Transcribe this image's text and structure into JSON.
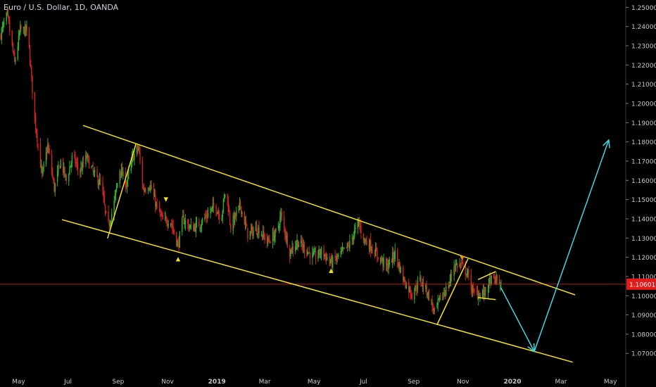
{
  "header": {
    "title": "Euro / U.S. Dollar, 1D, OANDA"
  },
  "colors": {
    "background": "#000000",
    "up_candle": "#2fb12f",
    "down_candle": "#d42323",
    "channel": "#f2e21e",
    "projection": "#3fd7e2",
    "price_line": "#b71c1c",
    "price_badge": "#e31b1b",
    "axis_text": "#c8c8c8"
  },
  "chart_data": {
    "type": "candlestick",
    "symbol": "Euro / U.S. Dollar",
    "interval": "1D",
    "source": "OANDA",
    "x_range": [
      "2018-04-08",
      "2020-05-20"
    ],
    "y_range": [
      1.0635,
      1.2538
    ],
    "x_ticks": [
      {
        "date": "2018-05-01",
        "label": "May"
      },
      {
        "date": "2018-07-01",
        "label": "Jul"
      },
      {
        "date": "2018-09-01",
        "label": "Sep"
      },
      {
        "date": "2018-11-01",
        "label": "Nov"
      },
      {
        "date": "2019-01-01",
        "label": "2019"
      },
      {
        "date": "2019-03-01",
        "label": "Mar"
      },
      {
        "date": "2019-05-01",
        "label": "May"
      },
      {
        "date": "2019-07-01",
        "label": "Jul"
      },
      {
        "date": "2019-09-01",
        "label": "Sep"
      },
      {
        "date": "2019-11-01",
        "label": "Nov"
      },
      {
        "date": "2020-01-01",
        "label": "2020"
      },
      {
        "date": "2020-03-01",
        "label": "Mar"
      },
      {
        "date": "2020-05-01",
        "label": "May"
      }
    ],
    "y_ticks": [
      {
        "value": 1.25,
        "label": "1.25000"
      },
      {
        "value": 1.24,
        "label": "1.24000"
      },
      {
        "value": 1.23,
        "label": "1.23000"
      },
      {
        "value": 1.22,
        "label": "1.22000"
      },
      {
        "value": 1.21,
        "label": "1.21000"
      },
      {
        "value": 1.2,
        "label": "1.20000"
      },
      {
        "value": 1.19,
        "label": "1.19000"
      },
      {
        "value": 1.18,
        "label": "1.18000"
      },
      {
        "value": 1.17,
        "label": "1.17000"
      },
      {
        "value": 1.16,
        "label": "1.16000"
      },
      {
        "value": 1.15,
        "label": "1.15000"
      },
      {
        "value": 1.14,
        "label": "1.14000"
      },
      {
        "value": 1.13,
        "label": "1.13000"
      },
      {
        "value": 1.12,
        "label": "1.12000"
      },
      {
        "value": 1.11,
        "label": "1.11000"
      },
      {
        "value": 1.1,
        "label": "1.10000"
      },
      {
        "value": 1.09,
        "label": "1.09000"
      },
      {
        "value": 1.08,
        "label": "1.08000"
      },
      {
        "value": 1.07,
        "label": "1.07000"
      }
    ],
    "current_price": {
      "value": 1.10601,
      "label": "1.10601"
    },
    "price_path": [
      [
        "2018-04-08",
        1.235
      ],
      [
        "2018-04-17",
        1.246
      ],
      [
        "2018-04-26",
        1.221
      ],
      [
        "2018-05-03",
        1.238
      ],
      [
        "2018-05-12",
        1.238
      ],
      [
        "2018-05-21",
        1.192
      ],
      [
        "2018-05-30",
        1.162
      ],
      [
        "2018-06-06",
        1.178
      ],
      [
        "2018-06-14",
        1.156
      ],
      [
        "2018-06-22",
        1.17
      ],
      [
        "2018-06-29",
        1.16
      ],
      [
        "2018-07-07",
        1.173
      ],
      [
        "2018-07-15",
        1.164
      ],
      [
        "2018-07-24",
        1.172
      ],
      [
        "2018-08-02",
        1.163
      ],
      [
        "2018-08-11",
        1.158
      ],
      [
        "2018-08-19",
        1.135
      ],
      [
        "2018-08-26",
        1.146
      ],
      [
        "2018-09-03",
        1.166
      ],
      [
        "2018-09-11",
        1.158
      ],
      [
        "2018-09-19",
        1.172
      ],
      [
        "2018-09-26",
        1.177
      ],
      [
        "2018-10-02",
        1.155
      ],
      [
        "2018-10-10",
        1.158
      ],
      [
        "2018-10-18",
        1.147
      ],
      [
        "2018-10-27",
        1.138
      ],
      [
        "2018-11-04",
        1.14
      ],
      [
        "2018-11-14",
        1.126
      ],
      [
        "2018-11-20",
        1.14
      ],
      [
        "2018-11-30",
        1.135
      ],
      [
        "2018-12-10",
        1.137
      ],
      [
        "2018-12-20",
        1.142
      ],
      [
        "2018-12-30",
        1.147
      ],
      [
        "2019-01-06",
        1.14
      ],
      [
        "2019-01-12",
        1.156
      ],
      [
        "2019-01-18",
        1.136
      ],
      [
        "2019-01-30",
        1.147
      ],
      [
        "2019-02-08",
        1.132
      ],
      [
        "2019-02-20",
        1.135
      ],
      [
        "2019-03-05",
        1.128
      ],
      [
        "2019-03-16",
        1.133
      ],
      [
        "2019-03-21",
        1.142
      ],
      [
        "2019-04-01",
        1.123
      ],
      [
        "2019-04-10",
        1.128
      ],
      [
        "2019-04-19",
        1.125
      ],
      [
        "2019-04-30",
        1.12
      ],
      [
        "2019-05-11",
        1.123
      ],
      [
        "2019-05-22",
        1.117
      ],
      [
        "2019-06-02",
        1.121
      ],
      [
        "2019-06-13",
        1.126
      ],
      [
        "2019-06-25",
        1.138
      ],
      [
        "2019-07-02",
        1.129
      ],
      [
        "2019-07-10",
        1.126
      ],
      [
        "2019-07-20",
        1.12
      ],
      [
        "2019-07-30",
        1.115
      ],
      [
        "2019-08-09",
        1.122
      ],
      [
        "2019-08-20",
        1.108
      ],
      [
        "2019-08-30",
        1.101
      ],
      [
        "2019-09-09",
        1.108
      ],
      [
        "2019-09-18",
        1.102
      ],
      [
        "2019-09-27",
        1.091
      ],
      [
        "2019-10-04",
        1.099
      ],
      [
        "2019-10-14",
        1.105
      ],
      [
        "2019-10-21",
        1.116
      ],
      [
        "2019-10-29",
        1.116
      ],
      [
        "2019-11-06",
        1.112
      ],
      [
        "2019-11-14",
        1.101
      ],
      [
        "2019-11-20",
        1.101
      ],
      [
        "2019-11-27",
        1.101
      ],
      [
        "2019-12-05",
        1.108
      ],
      [
        "2019-12-13",
        1.108
      ],
      [
        "2019-12-18",
        1.106
      ]
    ],
    "drawings": [
      {
        "type": "trendline",
        "name": "channel-upper-line",
        "color": "yellow",
        "from": [
          "2018-07-20",
          1.1885
        ],
        "to": [
          "2020-03-18",
          1.1005
        ]
      },
      {
        "type": "trendline",
        "name": "channel-lower-line",
        "color": "yellow",
        "from": [
          "2018-06-24",
          1.1395
        ],
        "to": [
          "2020-03-15",
          1.0655
        ]
      },
      {
        "type": "trendline",
        "name": "flag-left-line",
        "color": "yellow",
        "from": [
          "2018-08-19",
          1.13
        ],
        "to": [
          "2018-09-23",
          1.179
        ]
      },
      {
        "type": "trendline",
        "name": "flag-right-line",
        "color": "yellow",
        "from": [
          "2019-09-30",
          1.085
        ],
        "to": [
          "2019-11-07",
          1.119
        ]
      },
      {
        "type": "trendline",
        "name": "pennant-upper-line",
        "color": "yellow",
        "from": [
          "2019-11-20",
          1.1085
        ],
        "to": [
          "2019-12-11",
          1.1125
        ]
      },
      {
        "type": "trendline",
        "name": "pennant-lower-line",
        "color": "yellow",
        "from": [
          "2019-11-20",
          1.099
        ],
        "to": [
          "2019-12-11",
          1.098
        ]
      },
      {
        "type": "arrow",
        "name": "projection-down-arrow",
        "color": "cyan",
        "from": [
          "2019-12-18",
          1.104
        ],
        "to": [
          "2020-01-28",
          1.071
        ]
      },
      {
        "type": "arrow",
        "name": "projection-up-arrow",
        "color": "cyan",
        "from": [
          "2020-01-28",
          1.071
        ],
        "to": [
          "2020-04-29",
          1.181
        ]
      }
    ],
    "markers": [
      {
        "name": "marker-down-triangle",
        "date": "2018-10-30",
        "price": 1.15,
        "direction": "down",
        "color": "yellow"
      },
      {
        "name": "marker-up-triangle",
        "date": "2018-11-14",
        "price": 1.119,
        "direction": "up",
        "color": "yellow"
      },
      {
        "name": "marker-up-triangle",
        "date": "2019-05-22",
        "price": 1.113,
        "direction": "up",
        "color": "yellow"
      },
      {
        "name": "marker-down-triangle",
        "date": "2019-10-31",
        "price": 1.1195,
        "direction": "down",
        "color": "orange"
      }
    ],
    "grid": false,
    "legend": "none"
  }
}
